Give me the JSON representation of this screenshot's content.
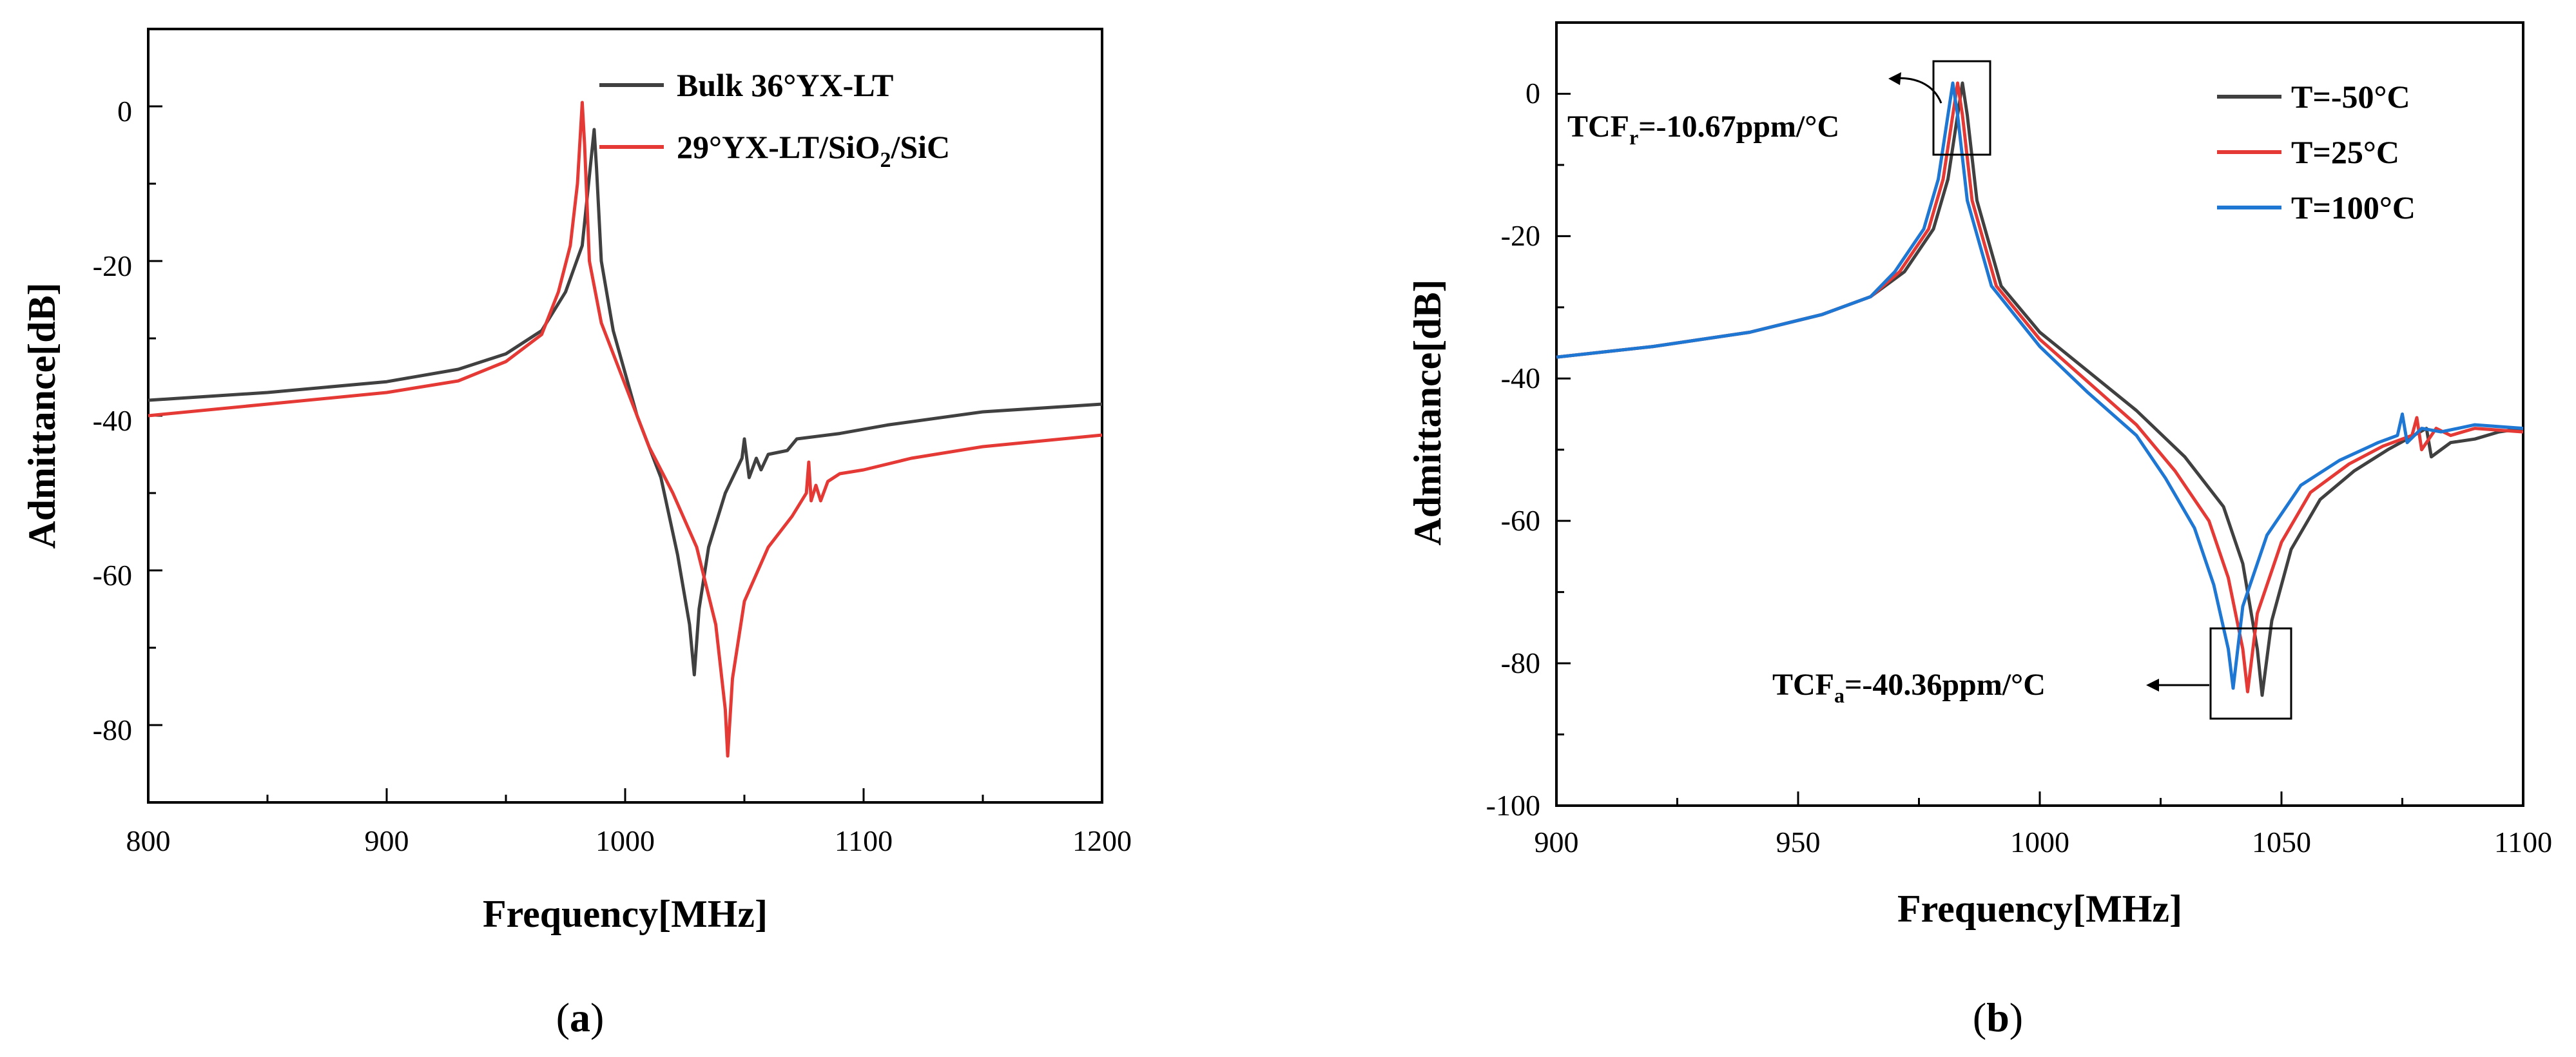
{
  "chart_data": [
    {
      "type": "line",
      "caption": {
        "open": "(",
        "letter": "a",
        "close": ")"
      },
      "xlabel": "Frequency[MHz]",
      "ylabel": "Admittance[dB]",
      "xlim": [
        800,
        1200
      ],
      "ylim": [
        -90,
        10
      ],
      "xticks": [
        800,
        900,
        1000,
        1100,
        1200
      ],
      "yticks": [
        0,
        -20,
        -40,
        -60,
        -80
      ],
      "legend_position": "top-right",
      "series": [
        {
          "name": "Bulk 36°YX-LT",
          "color": "#404040",
          "points": [
            [
              800,
              -38
            ],
            [
              850,
              -37
            ],
            [
              900,
              -35.6
            ],
            [
              930,
              -34
            ],
            [
              950,
              -32
            ],
            [
              965,
              -29
            ],
            [
              975,
              -24
            ],
            [
              982,
              -18
            ],
            [
              985,
              -9
            ],
            [
              987,
              -3
            ],
            [
              988,
              -8
            ],
            [
              990,
              -20
            ],
            [
              995,
              -29
            ],
            [
              1005,
              -40
            ],
            [
              1015,
              -48
            ],
            [
              1022,
              -58
            ],
            [
              1027,
              -67
            ],
            [
              1029,
              -73.5
            ],
            [
              1031,
              -65
            ],
            [
              1035,
              -57
            ],
            [
              1042,
              -50
            ],
            [
              1049,
              -45.5
            ],
            [
              1050,
              -43
            ],
            [
              1052,
              -48
            ],
            [
              1055,
              -45.5
            ],
            [
              1057,
              -47
            ],
            [
              1060,
              -45
            ],
            [
              1068,
              -44.5
            ],
            [
              1072,
              -43
            ],
            [
              1090,
              -42.3
            ],
            [
              1110,
              -41.2
            ],
            [
              1150,
              -39.5
            ],
            [
              1200,
              -38.5
            ]
          ]
        },
        {
          "name": "29°YX-LT/SiO2/SiC",
          "label_parts": {
            "main": "29°YX-LT/SiO",
            "sub": "2",
            "tail": "/SiC"
          },
          "color": "#e53935",
          "points": [
            [
              800,
              -40
            ],
            [
              850,
              -38.5
            ],
            [
              900,
              -37
            ],
            [
              930,
              -35.5
            ],
            [
              950,
              -33
            ],
            [
              965,
              -29.5
            ],
            [
              972,
              -24
            ],
            [
              977,
              -18
            ],
            [
              980,
              -10
            ],
            [
              982,
              0.5
            ],
            [
              983,
              -5
            ],
            [
              985,
              -20
            ],
            [
              990,
              -28
            ],
            [
              1000,
              -36
            ],
            [
              1010,
              -44
            ],
            [
              1020,
              -50
            ],
            [
              1030,
              -57
            ],
            [
              1038,
              -67
            ],
            [
              1042,
              -78
            ],
            [
              1043,
              -84
            ],
            [
              1045,
              -74
            ],
            [
              1050,
              -64
            ],
            [
              1060,
              -57
            ],
            [
              1070,
              -53
            ],
            [
              1076,
              -50
            ],
            [
              1077,
              -46
            ],
            [
              1078,
              -51
            ],
            [
              1080,
              -49
            ],
            [
              1082,
              -51
            ],
            [
              1085,
              -48.5
            ],
            [
              1090,
              -47.5
            ],
            [
              1100,
              -47
            ],
            [
              1120,
              -45.5
            ],
            [
              1150,
              -44
            ],
            [
              1200,
              -42.5
            ]
          ]
        }
      ]
    },
    {
      "type": "line",
      "caption": {
        "open": "(",
        "letter": "b",
        "close": ")"
      },
      "xlabel": "Frequency[MHz]",
      "ylabel": "Admittance[dB]",
      "xlim": [
        900,
        1100
      ],
      "ylim": [
        -100,
        10
      ],
      "xticks": [
        900,
        950,
        1000,
        1050,
        1100
      ],
      "yticks": [
        0,
        -20,
        -40,
        -60,
        -80,
        -100
      ],
      "legend_position": "top-right",
      "series": [
        {
          "name": "T=-50°C",
          "color": "#404040",
          "points": [
            [
              900,
              -37
            ],
            [
              920,
              -35.5
            ],
            [
              940,
              -33.5
            ],
            [
              955,
              -31
            ],
            [
              965,
              -28.5
            ],
            [
              972,
              -25
            ],
            [
              978,
              -19
            ],
            [
              981,
              -12
            ],
            [
              983,
              -3
            ],
            [
              984,
              1.5
            ],
            [
              985,
              -3
            ],
            [
              987,
              -15
            ],
            [
              992,
              -27
            ],
            [
              1000,
              -33.5
            ],
            [
              1010,
              -39
            ],
            [
              1020,
              -44.5
            ],
            [
              1030,
              -51
            ],
            [
              1038,
              -58
            ],
            [
              1042,
              -66
            ],
            [
              1045,
              -78
            ],
            [
              1046,
              -84.5
            ],
            [
              1048,
              -74
            ],
            [
              1052,
              -64
            ],
            [
              1058,
              -57
            ],
            [
              1065,
              -53
            ],
            [
              1072,
              -50
            ],
            [
              1076,
              -48.5
            ],
            [
              1080,
              -47
            ],
            [
              1081,
              -51
            ],
            [
              1085,
              -49
            ],
            [
              1090,
              -48.5
            ],
            [
              1095,
              -47.5
            ],
            [
              1100,
              -47
            ]
          ]
        },
        {
          "name": "T=25°C",
          "color": "#e53935",
          "points": [
            [
              900,
              -37
            ],
            [
              920,
              -35.5
            ],
            [
              940,
              -33.5
            ],
            [
              955,
              -31
            ],
            [
              965,
              -28.5
            ],
            [
              971,
              -25
            ],
            [
              977,
              -19
            ],
            [
              980,
              -12
            ],
            [
              982,
              -3
            ],
            [
              983,
              1.5
            ],
            [
              984,
              -3
            ],
            [
              986,
              -15
            ],
            [
              991,
              -27
            ],
            [
              1000,
              -34.5
            ],
            [
              1010,
              -40.5
            ],
            [
              1020,
              -46.5
            ],
            [
              1028,
              -53
            ],
            [
              1035,
              -60
            ],
            [
              1039,
              -68
            ],
            [
              1042,
              -78
            ],
            [
              1043,
              -84
            ],
            [
              1045,
              -73
            ],
            [
              1050,
              -63
            ],
            [
              1056,
              -56
            ],
            [
              1064,
              -52
            ],
            [
              1071,
              -49.5
            ],
            [
              1077,
              -48
            ],
            [
              1078,
              -45.5
            ],
            [
              1079,
              -50
            ],
            [
              1082,
              -47
            ],
            [
              1085,
              -48
            ],
            [
              1090,
              -47
            ],
            [
              1100,
              -47.5
            ]
          ]
        },
        {
          "name": "T=100°C",
          "color": "#1f77d4",
          "points": [
            [
              900,
              -37
            ],
            [
              920,
              -35.5
            ],
            [
              940,
              -33.5
            ],
            [
              955,
              -31
            ],
            [
              965,
              -28.5
            ],
            [
              970,
              -25
            ],
            [
              976,
              -19
            ],
            [
              979,
              -12
            ],
            [
              981,
              -3
            ],
            [
              982,
              1.5
            ],
            [
              983,
              -3
            ],
            [
              985,
              -15
            ],
            [
              990,
              -27
            ],
            [
              1000,
              -35.5
            ],
            [
              1010,
              -42
            ],
            [
              1020,
              -48
            ],
            [
              1026,
              -54
            ],
            [
              1032,
              -61
            ],
            [
              1036,
              -69
            ],
            [
              1039,
              -78
            ],
            [
              1040,
              -83.5
            ],
            [
              1042,
              -72
            ],
            [
              1047,
              -62
            ],
            [
              1054,
              -55
            ],
            [
              1062,
              -51.5
            ],
            [
              1070,
              -49
            ],
            [
              1074,
              -48
            ],
            [
              1075,
              -45
            ],
            [
              1076,
              -49
            ],
            [
              1079,
              -47
            ],
            [
              1083,
              -47.5
            ],
            [
              1090,
              -46.5
            ],
            [
              1100,
              -47
            ]
          ]
        }
      ],
      "annotations": [
        {
          "kind": "resonance",
          "prefix": "TCF",
          "sub": "r",
          "rest": "=-10.67ppm/°C"
        },
        {
          "kind": "anti-resonance",
          "prefix": "TCF",
          "sub": "a",
          "rest": "=-40.36ppm/°C"
        }
      ]
    }
  ]
}
